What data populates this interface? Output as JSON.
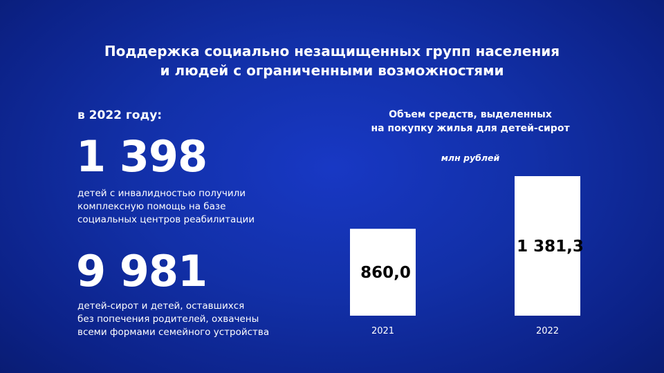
{
  "title_line1": "Поддержка социально незащищенных групп населения",
  "title_line2": "и людей с ограниченными возможностями",
  "left": {
    "year_label": "в 2022 году:",
    "stats": [
      {
        "value": "1 398",
        "lines": [
          "детей с инвалидностью получили",
          "комплексную помощь на базе",
          "социальных центров реабилитации"
        ]
      },
      {
        "value": "9 981",
        "lines": [
          "детей-сирот и детей, оставшихся",
          "без попечения родителей, охвачены",
          "всеми формами семейного устройства"
        ]
      }
    ]
  },
  "chart_data": {
    "type": "bar",
    "title_lines": [
      "Объем средств, выделенных",
      "на покупку жилья для детей-сирот"
    ],
    "unit": "млн рублей",
    "categories": [
      "2021",
      "2022"
    ],
    "values": [
      860.0,
      1381.3
    ],
    "data_labels": [
      "860,0",
      "1 381,3"
    ],
    "ylim": [
      0,
      1381.3
    ],
    "grid": false,
    "bar_color": "#ffffff",
    "label_color": "#000000"
  }
}
